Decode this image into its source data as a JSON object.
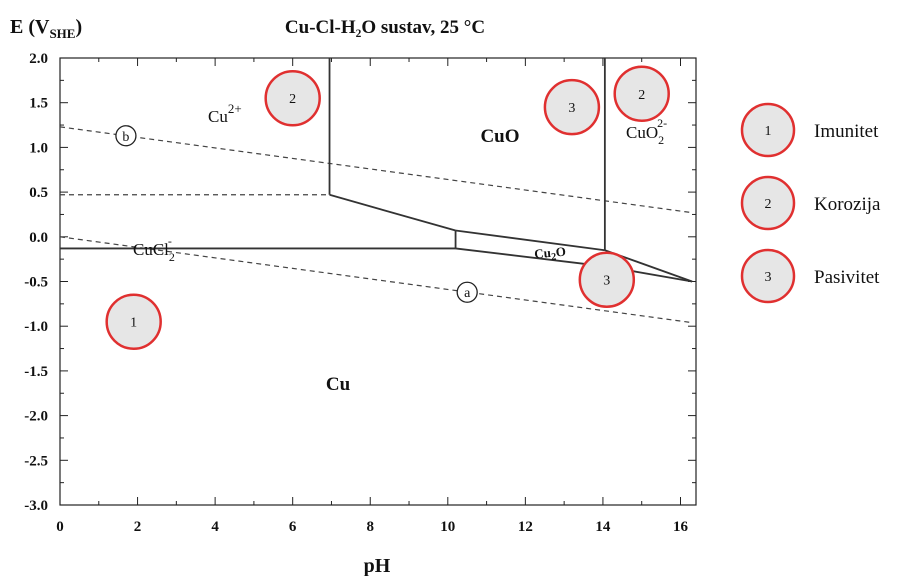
{
  "chart_data": {
    "type": "diagram",
    "title": "Cu-Cl-H₂O sustav, 25 °C",
    "xlabel": "pH",
    "ylabel": "E (V",
    "ylabel_sub": "SHE",
    "ylabel_close": ")",
    "xlim": [
      0,
      16.4
    ],
    "ylim": [
      -3.0,
      2.0
    ],
    "xticks": [
      "0",
      "2",
      "4",
      "6",
      "8",
      "10",
      "12",
      "14",
      "16"
    ],
    "yticks": [
      "2.0",
      "1.5",
      "1.0",
      "0.5",
      "0.0",
      "-0.5",
      "-1.0",
      "-1.5",
      "-2.0",
      "-2.5",
      "-3.0"
    ],
    "region_labels": {
      "cu": "Cu",
      "cuo": "CuO",
      "cu2o": "Cu",
      "cu2o_sub": "2",
      "cu2o_tail": "O",
      "cu2": "Cu",
      "cu2_sup": "2+",
      "cucl": "CuCl",
      "cucl_sub": "2",
      "cucl_sup": "-",
      "cuo2": "CuO",
      "cuo2_sub": "2",
      "cuo2_sup": "2-"
    },
    "lines": {
      "boundaries": [
        [
          [
            0,
            -0.13
          ],
          [
            10.2,
            -0.13
          ]
        ],
        [
          [
            6.95,
            2.0
          ],
          [
            6.95,
            0.47
          ]
        ],
        [
          [
            6.95,
            0.47
          ],
          [
            10.2,
            0.07
          ]
        ],
        [
          [
            10.2,
            0.07
          ],
          [
            14.05,
            -0.15
          ]
        ],
        [
          [
            10.2,
            -0.13
          ],
          [
            10.2,
            0.07
          ]
        ],
        [
          [
            10.2,
            -0.13
          ],
          [
            14.05,
            -0.33
          ]
        ],
        [
          [
            14.05,
            -0.15
          ],
          [
            14.05,
            2.0
          ]
        ],
        [
          [
            14.05,
            -0.15
          ],
          [
            16.3,
            -0.5
          ]
        ],
        [
          [
            14.05,
            -0.33
          ],
          [
            16.3,
            -0.5
          ]
        ]
      ],
      "dashed": [
        [
          [
            0,
            1.23
          ],
          [
            16.3,
            0.27
          ]
        ],
        [
          [
            0,
            0.0
          ],
          [
            16.3,
            -0.96
          ]
        ],
        [
          [
            0,
            0.47
          ],
          [
            6.95,
            0.47
          ]
        ]
      ]
    },
    "water_line_markers": [
      {
        "label": "b",
        "x": 1.7,
        "y": 1.13
      },
      {
        "label": "a",
        "x": 10.5,
        "y": -0.62
      }
    ],
    "zone_markers": [
      {
        "label": "1",
        "x": 1.9,
        "y": -0.95
      },
      {
        "label": "2",
        "x": 6.0,
        "y": 1.55
      },
      {
        "label": "3",
        "x": 13.2,
        "y": 1.45
      },
      {
        "label": "2",
        "x": 15.0,
        "y": 1.6
      },
      {
        "label": "3",
        "x": 14.1,
        "y": -0.48
      }
    ],
    "marker_color": "#e03030",
    "marker_fill": "#e6e6e6",
    "legend": [
      {
        "marker": "1",
        "label": "Imunitet"
      },
      {
        "marker": "2",
        "label": "Korozija"
      },
      {
        "marker": "3",
        "label": "Pasivitet"
      }
    ]
  }
}
